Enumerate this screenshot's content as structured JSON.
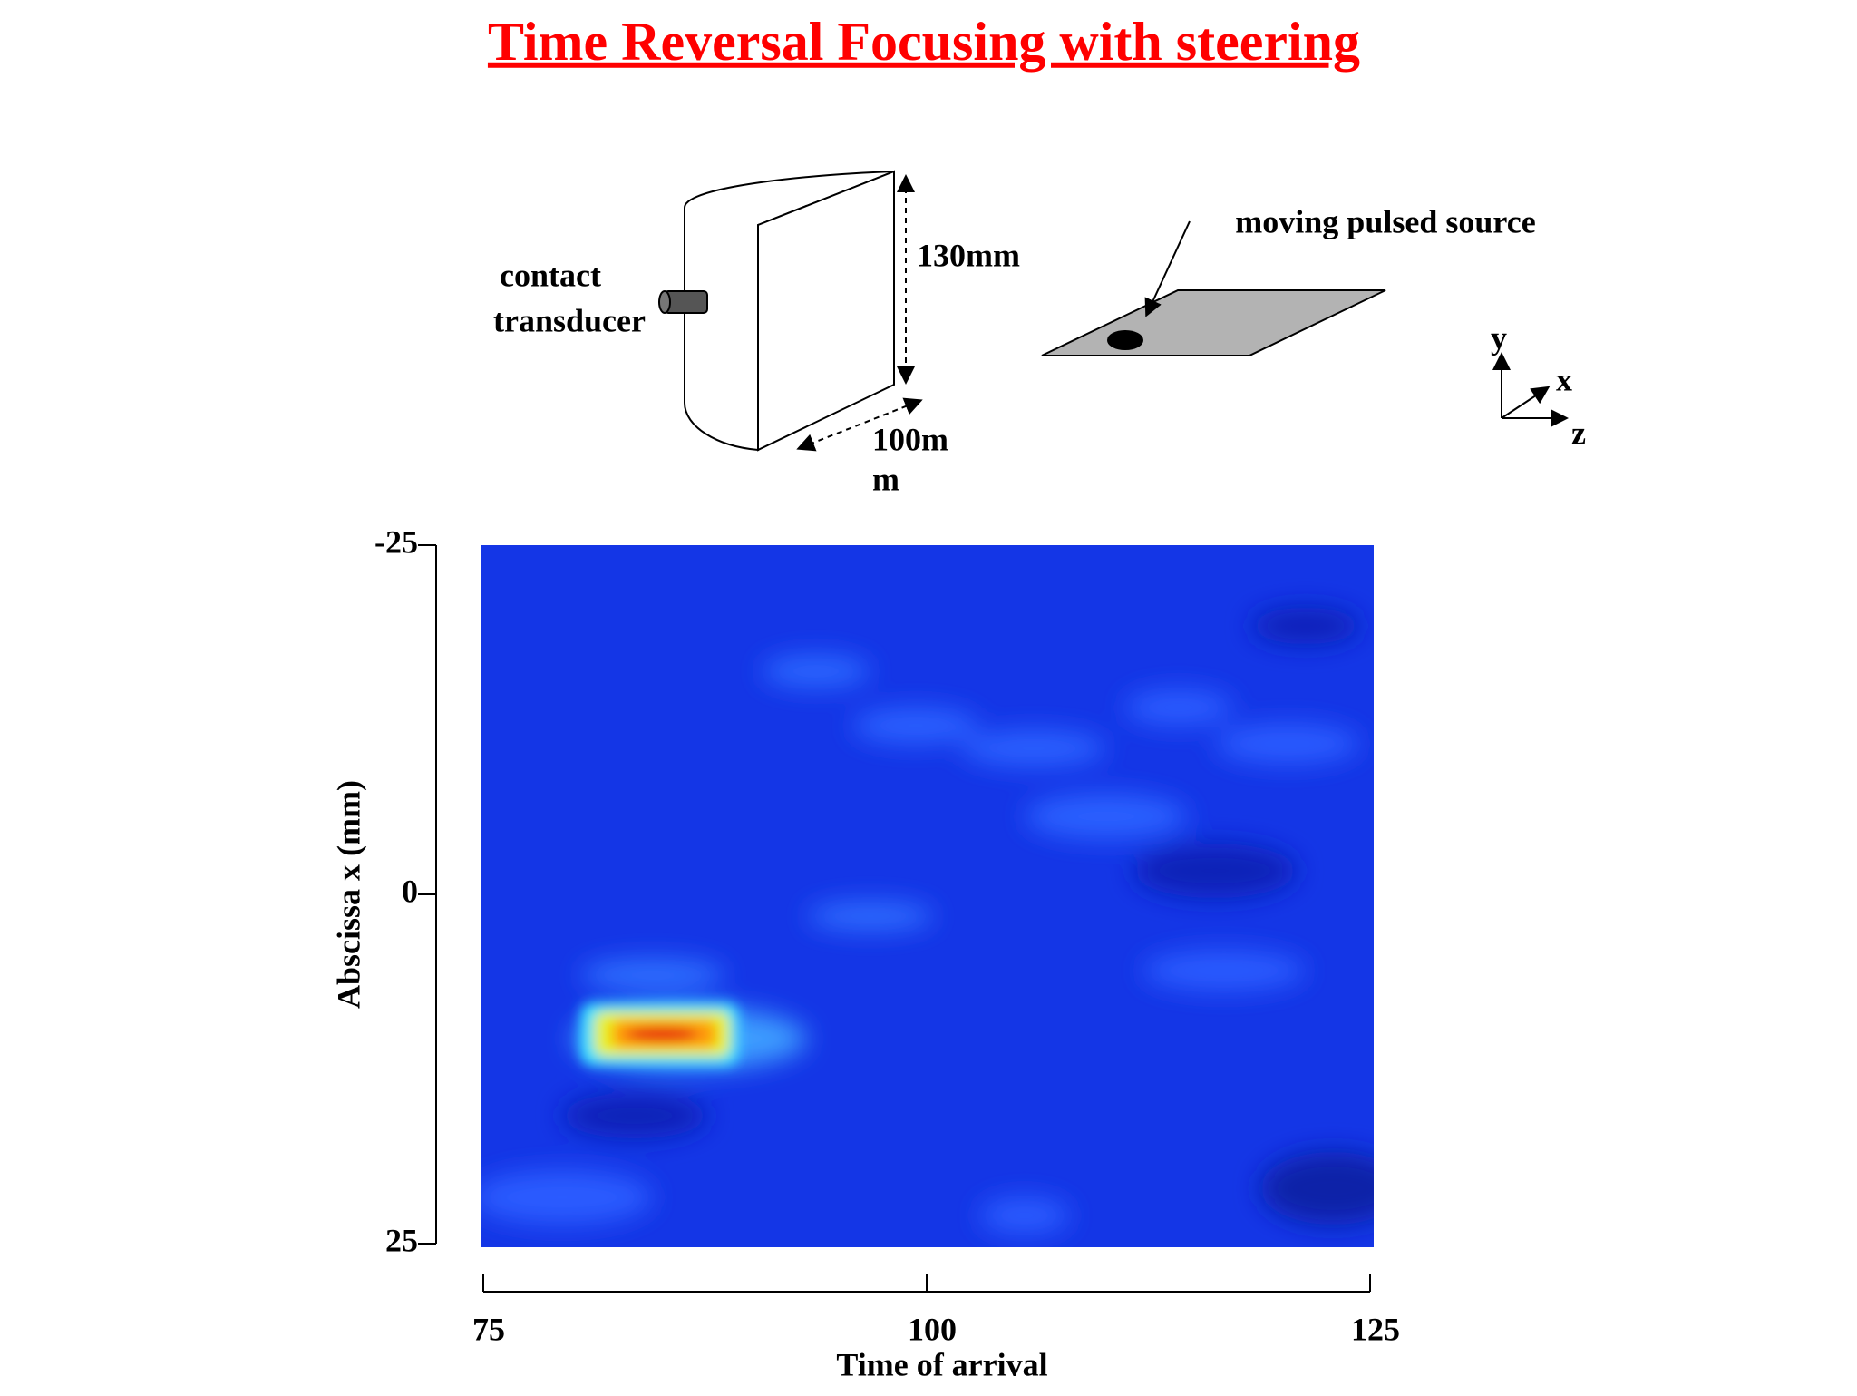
{
  "chart_data": {
    "type": "heatmap",
    "title": "Time Reversal Focusing with steering",
    "xlabel": "Time of arrival",
    "ylabel": "Abscissa  x (mm)",
    "xlim": [
      75,
      125
    ],
    "xticks": [
      75,
      100,
      125
    ],
    "ylim": [
      -25,
      25
    ],
    "yticks": [
      -25,
      0,
      25
    ]
  },
  "diagram": {
    "transducer_label": [
      "contact",
      "transducer"
    ],
    "height_label": "130mm",
    "width_label": [
      "100m",
      "m"
    ],
    "source_label": "moving pulsed source",
    "axes_labels": [
      "y",
      "x",
      "z"
    ]
  }
}
